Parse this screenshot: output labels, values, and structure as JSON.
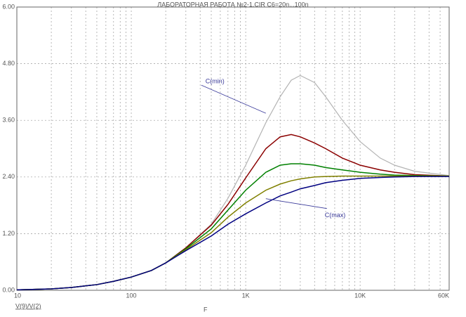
{
  "chart_data": {
    "type": "line",
    "title": "ЛАБОРАТОРНАЯ РАБОТА №2-1.CIR C6=20n...100n",
    "x_label": "F",
    "y_label": "V(9)/V(2)",
    "log_x": true,
    "grid": true,
    "x": [
      10,
      20,
      30,
      50,
      70,
      100,
      150,
      200,
      300,
      500,
      700,
      1000,
      1500,
      2000,
      2500,
      3000,
      4000,
      5000,
      7000,
      10000,
      15000,
      20000,
      30000,
      60000
    ],
    "series": [
      {
        "color": "#b4b4b4",
        "values": [
          0.01,
          0.03,
          0.06,
          0.12,
          0.19,
          0.28,
          0.42,
          0.58,
          0.9,
          1.4,
          1.95,
          2.65,
          3.55,
          4.1,
          4.45,
          4.55,
          4.4,
          4.1,
          3.6,
          3.15,
          2.8,
          2.65,
          2.52,
          2.43
        ]
      },
      {
        "color": "#8b0000",
        "values": [
          0.01,
          0.03,
          0.06,
          0.12,
          0.19,
          0.28,
          0.42,
          0.58,
          0.9,
          1.38,
          1.82,
          2.38,
          3.0,
          3.25,
          3.3,
          3.25,
          3.12,
          3.0,
          2.8,
          2.65,
          2.55,
          2.5,
          2.45,
          2.42
        ]
      },
      {
        "color": "#008000",
        "values": [
          0.01,
          0.03,
          0.06,
          0.12,
          0.19,
          0.28,
          0.42,
          0.58,
          0.88,
          1.3,
          1.7,
          2.12,
          2.5,
          2.65,
          2.68,
          2.68,
          2.65,
          2.6,
          2.55,
          2.5,
          2.46,
          2.44,
          2.43,
          2.42
        ]
      },
      {
        "color": "#808000",
        "values": [
          0.01,
          0.03,
          0.06,
          0.12,
          0.19,
          0.28,
          0.42,
          0.58,
          0.86,
          1.22,
          1.55,
          1.85,
          2.12,
          2.25,
          2.32,
          2.36,
          2.4,
          2.41,
          2.42,
          2.42,
          2.42,
          2.42,
          2.42,
          2.42
        ]
      },
      {
        "color": "#000080",
        "values": [
          0.01,
          0.03,
          0.06,
          0.12,
          0.19,
          0.28,
          0.42,
          0.58,
          0.84,
          1.15,
          1.4,
          1.62,
          1.85,
          2.0,
          2.08,
          2.15,
          2.22,
          2.28,
          2.33,
          2.37,
          2.39,
          2.4,
          2.41,
          2.41
        ]
      }
    ],
    "annotations": [
      {
        "text": "C(min)",
        "x": 1500,
        "y": 3.75
      },
      {
        "text": "C(max)",
        "x": 1500,
        "y": 1.94
      }
    ],
    "xlim": [
      10,
      60000
    ],
    "xticks": [
      10,
      100,
      {
        "value": 1000,
        "label": "1K"
      },
      {
        "value": 10000,
        "label": "10K"
      },
      {
        "value": 60000,
        "label": "60K"
      }
    ],
    "x_minor_grid": [
      20,
      30,
      40,
      50,
      60,
      70,
      80,
      90,
      200,
      300,
      400,
      500,
      600,
      700,
      800,
      900,
      2000,
      3000,
      4000,
      5000,
      6000,
      7000,
      8000,
      9000,
      20000,
      30000,
      40000,
      50000
    ],
    "ylim": [
      0,
      6
    ],
    "yticks": [
      {
        "value": 0,
        "label": "0.00"
      },
      {
        "value": 1.2,
        "label": "1.20"
      },
      {
        "value": 2.4,
        "label": "2.40"
      },
      {
        "value": 3.6,
        "label": "3.60"
      },
      {
        "value": 4.8,
        "label": "4.80"
      },
      {
        "value": 6,
        "label": "6.00"
      }
    ]
  }
}
